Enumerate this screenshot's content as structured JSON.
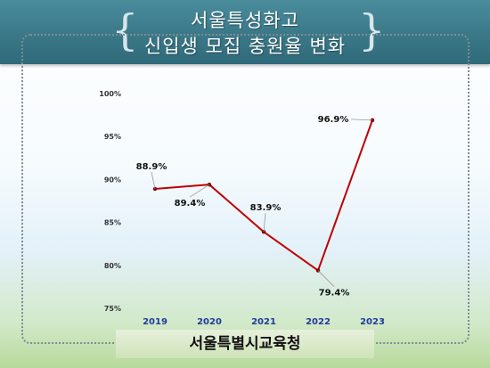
{
  "header": {
    "title_line1": "서울특성화고",
    "title_line2": "신입생 모집 충원율 변화"
  },
  "footer": {
    "label": "서울특별시교육청"
  },
  "colors": {
    "line": "#c00000",
    "marker": "#7a0000",
    "x_tick": "#1f3c9a",
    "banner": "#3a7888"
  },
  "chart_data": {
    "type": "line",
    "categories": [
      "2019",
      "2020",
      "2021",
      "2022",
      "2023"
    ],
    "series": [
      {
        "values": [
          88.9,
          89.4,
          83.9,
          79.4,
          96.9
        ],
        "labels": [
          "88.9%",
          "89.4%",
          "83.9%",
          "79.4%",
          "96.9%"
        ]
      }
    ],
    "ylim": [
      75,
      100
    ],
    "yticks": [
      75,
      80,
      85,
      90,
      95,
      100
    ],
    "ytick_labels": [
      "75%",
      "80%",
      "85%",
      "90%",
      "95%",
      "100%"
    ],
    "grid": false,
    "legend": "none"
  }
}
